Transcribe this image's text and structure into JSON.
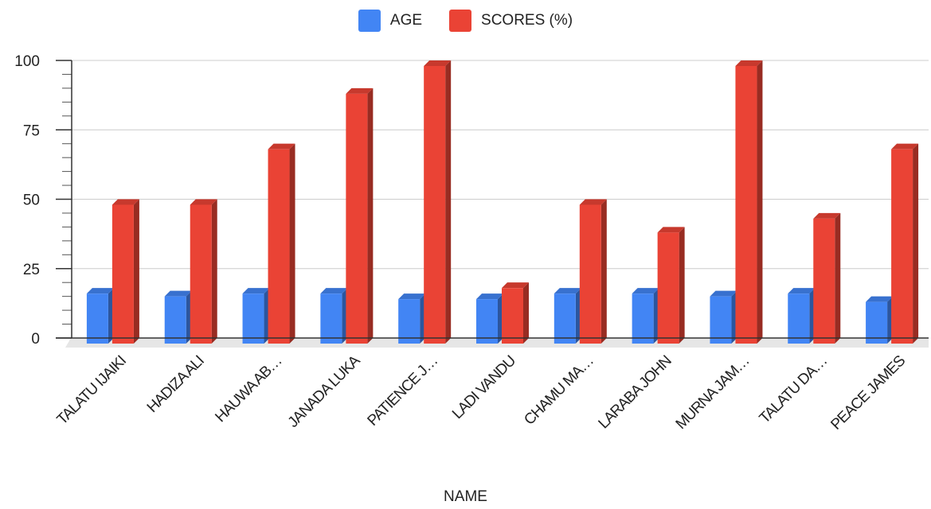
{
  "chart_data": {
    "type": "bar",
    "categories": [
      "TALATU IJAIKI",
      "HADIZA ALI",
      "HAUWA AB…",
      "JANADA LUKA",
      "PATIENCE J…",
      "LADI VANDU",
      "CHAMU MA…",
      "LARABA JOHN",
      "MURNA JAM…",
      "TALATU DA…",
      "PEACE JAMES"
    ],
    "series": [
      {
        "name": "AGE",
        "color": "#4285f4",
        "values": [
          16,
          15,
          16,
          16,
          14,
          14,
          16,
          16,
          15,
          16,
          13
        ]
      },
      {
        "name": "SCORES (%)",
        "color": "#ea4335",
        "values": [
          48,
          48,
          68,
          88,
          98,
          18,
          48,
          38,
          98,
          43,
          68
        ]
      }
    ],
    "xlabel": "NAME",
    "ylabel": "",
    "ylim": [
      0,
      100
    ],
    "yticks": [
      "0",
      "25",
      "50",
      "75",
      "100"
    ],
    "legend_position": "top-center",
    "grid": true,
    "style": "3d"
  }
}
